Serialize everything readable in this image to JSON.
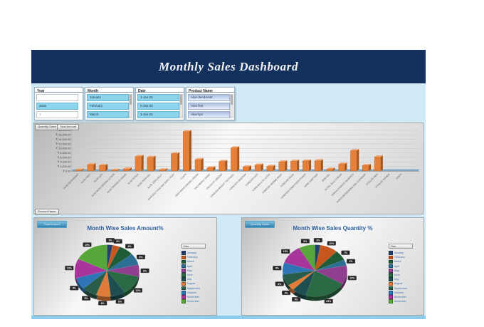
{
  "header": {
    "title": "Monthly Sales Dashboard"
  },
  "slicers": {
    "year": {
      "title": "Year",
      "items": [
        "",
        "2025",
        "1"
      ]
    },
    "month": {
      "title": "Month",
      "items": [
        "January",
        "February",
        "March"
      ]
    },
    "date": {
      "title": "Date",
      "items": [
        "1-Jan-25",
        "2-Jan-25",
        "3-Jan-25"
      ]
    },
    "product": {
      "title": "Product Name",
      "items": [
        "Aloe deodorant",
        "Aloe first",
        "Aloe lips"
      ]
    }
  },
  "colors": {
    "header_bg": "#14305c",
    "body_bg": "#cfe9f6",
    "slicer_selected": "#8ed3ec",
    "bar_front": "#e4803a",
    "bar_side": "#a3561d",
    "bar_top": "#f2a36b",
    "pie_title_text": "#2d5e9e"
  },
  "chart_data": [
    {
      "type": "bar",
      "buttons": [
        "Quantity Sales",
        "Total Amount"
      ],
      "axis_button": "Product Name",
      "currency": "₹",
      "ylabel": "",
      "ymax": 18000,
      "ystep": 2000,
      "grid": true,
      "categories": [
        "ALOE DEODORANT",
        "ALOE FIRST",
        "ALOE LIPS",
        "ALOE MOISTURIZING LOTION",
        "ALOE PROPOLIS CREME",
        "ALOE SCRUB",
        "ALOE VERA GEL",
        "ALOE VERA GELLY",
        "AVOCADO FACE AND BODY SOAP",
        "CLAPS",
        "DEEP MOISTURIZING CREAM",
        "FAB ENERGY DRINK",
        "FIELDS OF GREENS",
        "FOREVER BRIGHT TOOTHGEL",
        "FOREVER FREEDOM",
        "FOREVER KIDS",
        "FOREVER LITE ULTRA",
        "FOREVER MARINE MASK",
        "FOREVER MOVE",
        "FOREVER POMESTEEN POWER",
        "HAND SANITIZER",
        "MSM GEL",
        "ROYAL JELLY CREAM",
        "SONYA HYDRATE SHAMPOO",
        "SONYA REFRESHING GEL CLEANSER",
        "VITOLIZE MEN",
        "VITOLIZE WOMEN",
        "ZAAPS"
      ],
      "values": [
        400,
        2800,
        2400,
        300,
        900,
        6400,
        6000,
        500,
        7600,
        17400,
        5000,
        1400,
        4200,
        10200,
        1800,
        2600,
        2000,
        4000,
        4300,
        4400,
        4500,
        800,
        3000,
        9000,
        2400,
        6200,
        0,
        0
      ]
    },
    {
      "type": "pie",
      "title": "Month Wise Sales Amount%",
      "button": "Total Amount",
      "legend_title": "Date",
      "legend_position": "right",
      "categories": [
        "January",
        "February",
        "March",
        "April",
        "May",
        "June",
        "July",
        "August",
        "September",
        "October",
        "November",
        "December"
      ],
      "values": [
        3,
        4,
        8,
        8,
        8,
        13,
        8,
        8,
        8,
        8,
        13,
        19
      ],
      "colors": [
        "#24426e",
        "#c5571f",
        "#1e5c38",
        "#2d6e94",
        "#8e3f8e",
        "#2a6b45",
        "#1f4e50",
        "#e07b39",
        "#2a5c4a",
        "#2e75b6",
        "#a8359b",
        "#57a639"
      ]
    },
    {
      "type": "pie",
      "title": "Month Wise Sales Quantity %",
      "button": "Quantity Sales",
      "legend_title": "Date",
      "legend_position": "right",
      "categories": [
        "January",
        "February",
        "March",
        "April",
        "May",
        "June",
        "July",
        "August",
        "September",
        "October",
        "November",
        "December"
      ],
      "values": [
        3,
        10,
        7,
        4,
        13,
        23,
        8,
        4,
        8,
        8,
        13,
        9
      ],
      "colors": [
        "#24426e",
        "#c5571f",
        "#1e5c38",
        "#2d6e94",
        "#8e3f8e",
        "#2a6b45",
        "#1f4e50",
        "#e07b39",
        "#2a5c4a",
        "#2e75b6",
        "#a8359b",
        "#57a639"
      ]
    }
  ]
}
